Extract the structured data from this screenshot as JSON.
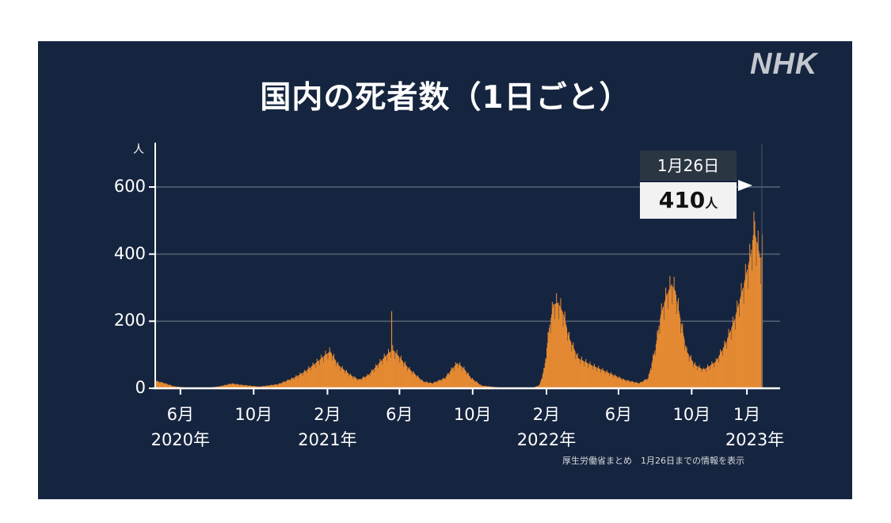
{
  "brand": "NHK",
  "chart_data": {
    "type": "bar",
    "title": "国内の死者数（1日ごと）",
    "unit": "人",
    "ylim": [
      0,
      700
    ],
    "yticks": [
      0,
      200,
      400,
      600
    ],
    "ytick_labels": [
      "0",
      "200",
      "400",
      "600"
    ],
    "grid": true,
    "xtick_labels": [
      "6月",
      "10月",
      "2月",
      "6月",
      "10月",
      "2月",
      "6月",
      "10月",
      "1月"
    ],
    "xtick_dates": [
      "2020-06-01",
      "2020-10-01",
      "2021-02-01",
      "2021-06-01",
      "2021-10-01",
      "2022-02-01",
      "2022-06-01",
      "2022-10-01",
      "2023-01-01"
    ],
    "year_labels": [
      {
        "label": "2020年",
        "date": "2020-06-01"
      },
      {
        "label": "2021年",
        "date": "2021-02-01"
      },
      {
        "label": "2022年",
        "date": "2022-02-01"
      },
      {
        "label": "2023年",
        "date": "2023-01-01"
      }
    ],
    "x_start": "2020-04-20",
    "x_end": "2023-01-26",
    "bar_color": "#e58a33",
    "series": [
      {
        "values": [
          [
            "2020-04-20",
            22
          ],
          [
            "2020-05-05",
            15
          ],
          [
            "2020-05-20",
            6
          ],
          [
            "2020-06-10",
            2
          ],
          [
            "2020-07-15",
            1
          ],
          [
            "2020-08-05",
            6
          ],
          [
            "2020-08-25",
            14
          ],
          [
            "2020-09-10",
            10
          ],
          [
            "2020-10-10",
            5
          ],
          [
            "2020-11-10",
            12
          ],
          [
            "2020-12-05",
            30
          ],
          [
            "2020-12-25",
            50
          ],
          [
            "2021-01-15",
            80
          ],
          [
            "2021-01-28",
            100
          ],
          [
            "2021-02-05",
            110
          ],
          [
            "2021-02-18",
            70
          ],
          [
            "2021-03-10",
            40
          ],
          [
            "2021-03-25",
            25
          ],
          [
            "2021-04-10",
            40
          ],
          [
            "2021-04-25",
            70
          ],
          [
            "2021-05-10",
            100
          ],
          [
            "2021-05-20",
            115
          ],
          [
            "2021-05-28",
            100
          ],
          [
            "2021-06-15",
            60
          ],
          [
            "2021-07-10",
            20
          ],
          [
            "2021-07-25",
            15
          ],
          [
            "2021-08-15",
            30
          ],
          [
            "2021-08-28",
            60
          ],
          [
            "2021-09-05",
            75
          ],
          [
            "2021-09-15",
            60
          ],
          [
            "2021-09-28",
            30
          ],
          [
            "2021-10-15",
            8
          ],
          [
            "2021-11-15",
            2
          ],
          [
            "2021-12-15",
            1
          ],
          [
            "2022-01-10",
            2
          ],
          [
            "2022-01-20",
            10
          ],
          [
            "2022-01-28",
            60
          ],
          [
            "2022-02-05",
            180
          ],
          [
            "2022-02-12",
            250
          ],
          [
            "2022-02-20",
            255
          ],
          [
            "2022-03-01",
            220
          ],
          [
            "2022-03-10",
            150
          ],
          [
            "2022-03-25",
            90
          ],
          [
            "2022-04-15",
            70
          ],
          [
            "2022-05-10",
            50
          ],
          [
            "2022-06-10",
            25
          ],
          [
            "2022-07-05",
            15
          ],
          [
            "2022-07-20",
            30
          ],
          [
            "2022-08-01",
            120
          ],
          [
            "2022-08-10",
            220
          ],
          [
            "2022-08-20",
            280
          ],
          [
            "2022-08-28",
            310
          ],
          [
            "2022-09-03",
            290
          ],
          [
            "2022-09-12",
            200
          ],
          [
            "2022-09-22",
            110
          ],
          [
            "2022-10-05",
            70
          ],
          [
            "2022-10-20",
            55
          ],
          [
            "2022-11-10",
            80
          ],
          [
            "2022-11-25",
            130
          ],
          [
            "2022-12-10",
            200
          ],
          [
            "2022-12-25",
            300
          ],
          [
            "2023-01-07",
            400
          ],
          [
            "2023-01-12",
            470
          ],
          [
            "2023-01-18",
            430
          ],
          [
            "2023-01-23",
            380
          ],
          [
            "2023-01-26",
            410
          ]
        ]
      }
    ],
    "spikes": [
      [
        "2021-05-19",
        230
      ],
      [
        "2023-01-14",
        498
      ]
    ],
    "callout": {
      "date": "1月26日",
      "value": "410",
      "unit": "人"
    }
  },
  "source_note": "厚生労働省まとめ　1月26日までの情報を表示"
}
